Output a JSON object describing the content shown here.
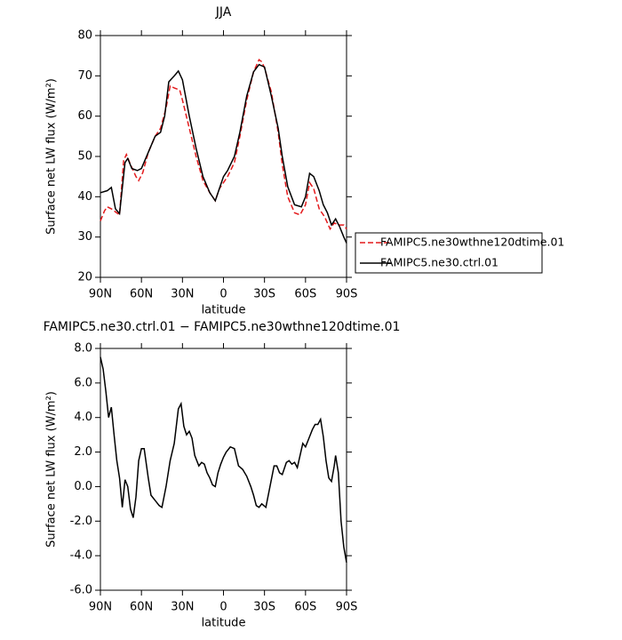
{
  "chart_data": [
    {
      "type": "line",
      "title": "JJA",
      "xlabel": "latitude",
      "ylabel": "Surface net LW flux (W/m²)",
      "xlim": [
        90,
        -90
      ],
      "xticks": [
        {
          "value": 90,
          "label": "90N"
        },
        {
          "value": 60,
          "label": "60N"
        },
        {
          "value": 30,
          "label": "30N"
        },
        0,
        {
          "value": -30,
          "label": "30S"
        },
        {
          "value": -60,
          "label": "60S"
        },
        {
          "value": -90,
          "label": "90S"
        }
      ],
      "ylim": [
        20,
        80
      ],
      "yticks": [
        20,
        30,
        40,
        50,
        60,
        70,
        80
      ],
      "legend": "right",
      "series": [
        {
          "name": "FAMIPC5.ne30wthne120dtime.01",
          "color": "#e41a1c",
          "dash": true,
          "x": [
            90,
            87,
            85,
            82,
            78,
            76,
            73,
            71,
            68,
            64,
            62,
            59,
            55,
            50,
            46,
            42,
            39,
            36,
            32,
            30,
            25,
            20,
            15,
            10,
            6,
            3,
            0,
            -3,
            -8,
            -12,
            -17,
            -22,
            -26,
            -28,
            -30,
            -35,
            -40,
            -43,
            -47,
            -52,
            -56,
            -60,
            -63,
            -66,
            -70,
            -74,
            -78,
            -81,
            -84,
            -88,
            -90
          ],
          "values": [
            34,
            36.5,
            37.5,
            37,
            36,
            35.5,
            49,
            50.5,
            48,
            45,
            44,
            46,
            51,
            55,
            57,
            62,
            67.5,
            67,
            66.5,
            64,
            57,
            50,
            44,
            41,
            39,
            42,
            43.5,
            45,
            48.5,
            55,
            64,
            71,
            74,
            73.5,
            72,
            66,
            56,
            48,
            40,
            36,
            35.5,
            38,
            43.5,
            42,
            37,
            35,
            32,
            33.5,
            33,
            33,
            32
          ]
        },
        {
          "name": "FAMIPC5.ne30.ctrl.01",
          "color": "#000000",
          "dash": false,
          "x": [
            90,
            85,
            82,
            79,
            76,
            72,
            70,
            67,
            63,
            60,
            55,
            50,
            46,
            43,
            40,
            36,
            33,
            30,
            25,
            20,
            15,
            10,
            6,
            3,
            0,
            -3,
            -8,
            -12,
            -17,
            -22,
            -26,
            -30,
            -35,
            -40,
            -43,
            -47,
            -52,
            -57,
            -60,
            -63,
            -66,
            -70,
            -73,
            -76,
            -79,
            -82,
            -85,
            -88,
            -90
          ],
          "values": [
            41,
            41.5,
            42.3,
            37,
            35.8,
            48.5,
            49.5,
            47,
            46.5,
            47,
            51,
            55,
            56,
            60,
            68.5,
            70,
            71.2,
            69,
            60,
            52,
            45,
            41,
            39,
            42,
            45,
            46.5,
            50,
            56,
            65,
            71,
            72.8,
            72.2,
            65,
            57,
            50,
            42.5,
            38,
            37.5,
            40,
            45.8,
            45,
            41.5,
            38,
            36,
            33,
            34.5,
            32.5,
            30,
            28.5
          ]
        }
      ]
    },
    {
      "type": "line",
      "title": "FAMIPC5.ne30.ctrl.01 − FAMIPC5.ne30wthne120dtime.01",
      "xlabel": "latitude",
      "ylabel": "Surface net LW flux (W/m²)",
      "xlim": [
        90,
        -90
      ],
      "xticks": [
        {
          "value": 90,
          "label": "90N"
        },
        {
          "value": 60,
          "label": "60N"
        },
        {
          "value": 30,
          "label": "30N"
        },
        0,
        {
          "value": -30,
          "label": "30S"
        },
        {
          "value": -60,
          "label": "60S"
        },
        {
          "value": -90,
          "label": "90S"
        }
      ],
      "ylim": [
        -6,
        8
      ],
      "yticks": [
        {
          "value": -6,
          "label": "-6.0"
        },
        {
          "value": -4,
          "label": "-4.0"
        },
        {
          "value": -2,
          "label": "-2.0"
        },
        {
          "value": 0,
          "label": "0.0"
        },
        {
          "value": 2,
          "label": "2.0"
        },
        {
          "value": 4,
          "label": "4.0"
        },
        {
          "value": 6,
          "label": "6.0"
        },
        {
          "value": 8,
          "label": "8.0"
        }
      ],
      "series": [
        {
          "color": "#000000",
          "dash": false,
          "x": [
            90,
            88,
            86,
            84,
            82,
            80,
            78,
            76,
            74,
            72,
            70,
            68,
            66,
            64,
            62,
            60,
            58,
            55,
            53,
            50,
            47,
            45,
            42,
            39,
            36,
            33,
            31,
            29,
            27,
            25,
            23,
            21,
            18,
            16,
            14,
            12,
            10,
            8,
            6,
            4,
            2,
            0,
            -2,
            -5,
            -8,
            -11,
            -14,
            -17,
            -20,
            -22,
            -24,
            -26,
            -28,
            -31,
            -34,
            -37,
            -39,
            -41,
            -43,
            -46,
            -48,
            -50,
            -52,
            -54,
            -56,
            -58,
            -60,
            -62,
            -65,
            -67,
            -69,
            -71,
            -73,
            -75,
            -77,
            -79,
            -81,
            -82,
            -84,
            -86,
            -88,
            -90
          ],
          "values": [
            7.5,
            6.8,
            5.5,
            4.0,
            4.6,
            3.0,
            1.5,
            0.5,
            -1.2,
            0.4,
            0,
            -1.3,
            -1.8,
            -0.6,
            1.5,
            2.2,
            2.2,
            0.5,
            -0.5,
            -0.8,
            -1.1,
            -1.2,
            0,
            1.5,
            2.5,
            4.5,
            4.8,
            3.5,
            3.0,
            3.2,
            2.8,
            1.8,
            1.2,
            1.4,
            1.3,
            0.8,
            0.5,
            0.1,
            0.0,
            0.8,
            1.3,
            1.7,
            2.0,
            2.3,
            2.2,
            1.2,
            1.0,
            0.6,
            0,
            -0.5,
            -1.1,
            -1.2,
            -1.0,
            -1.2,
            0.0,
            1.2,
            1.2,
            0.8,
            0.7,
            1.4,
            1.5,
            1.3,
            1.4,
            1.1,
            1.8,
            2.5,
            2.3,
            2.7,
            3.3,
            3.6,
            3.6,
            3.9,
            2.9,
            1.5,
            0.5,
            0.3,
            1.2,
            1.8,
            0.8,
            -2.0,
            -3.5,
            -4.4
          ]
        }
      ]
    }
  ]
}
